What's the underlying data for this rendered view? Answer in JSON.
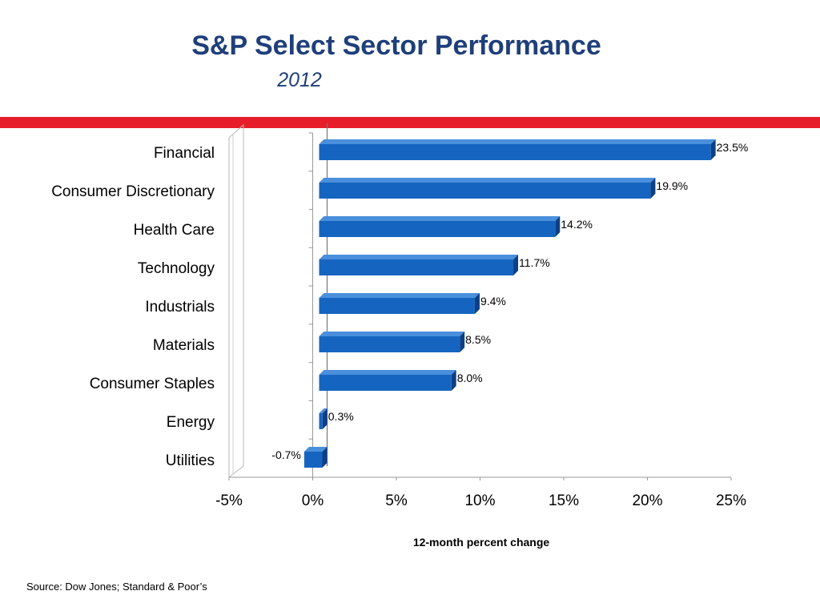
{
  "header": {
    "title": "S&P Select Sector Performance",
    "subtitle": "2012"
  },
  "footer": {
    "source": "Source:  Dow Jones; Standard & Poor’s"
  },
  "colors": {
    "accent_red": "#e61e2a",
    "title_blue": "#1f3f7a",
    "bar_blue": "#1565c0",
    "bar_blue_dark": "#0d3f85",
    "bar_blue_light": "#4a8fdc"
  },
  "chart_data": {
    "type": "bar",
    "orientation": "horizontal",
    "title": "S&P Select Sector Performance",
    "subtitle": "2012",
    "xlabel": "12-month percent change",
    "ylabel": "",
    "xlim": [
      -5,
      25
    ],
    "xticks": [
      -5,
      0,
      5,
      10,
      15,
      20,
      25
    ],
    "xtick_labels": [
      "-5%",
      "0%",
      "5%",
      "10%",
      "15%",
      "20%",
      "25%"
    ],
    "categories": [
      "Financial",
      "Consumer Discretionary",
      "Health Care",
      "Technology",
      "Industrials",
      "Materials",
      "Consumer Staples",
      "Energy",
      "Utilities"
    ],
    "values": [
      23.5,
      19.9,
      14.2,
      11.7,
      9.4,
      8.5,
      8.0,
      0.3,
      -0.7
    ],
    "data_labels": [
      "23.5%",
      "19.9%",
      "14.2%",
      "11.7%",
      "9.4%",
      "8.5%",
      "8.0%",
      "0.3%",
      "-0.7%"
    ],
    "grid": false,
    "legend": "none"
  }
}
